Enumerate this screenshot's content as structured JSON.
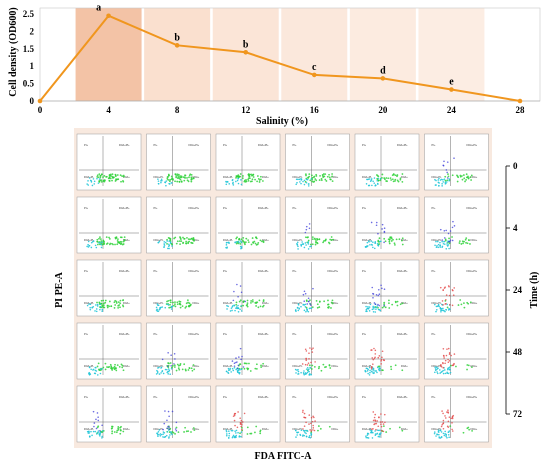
{
  "chart_data": {
    "type": "line",
    "xlabel": "Salinity (%)",
    "ylabel": "Cell density (OD600)",
    "x": [
      0,
      4,
      8,
      12,
      16,
      20,
      24,
      28
    ],
    "y": [
      0,
      2.45,
      1.6,
      1.4,
      0.75,
      0.65,
      0.33,
      0
    ],
    "point_labels": [
      "",
      "a",
      "b",
      "b",
      "c",
      "d",
      "e",
      ""
    ],
    "xlim": [
      0,
      28
    ],
    "ylim": [
      0,
      2.5
    ],
    "y_ticks": [
      "0",
      "0.5",
      "1",
      "1.5",
      "2",
      "2.5"
    ],
    "x_ticks": [
      "0",
      "4",
      "8",
      "12",
      "16",
      "20",
      "24",
      "28"
    ],
    "line_color": "#f0961e"
  },
  "flow_panel": {
    "xlabel": "FDA FITC-A",
    "ylabel": "PI PE-A",
    "time_label": "Time (h)",
    "time_values": [
      "0",
      "4",
      "24",
      "48",
      "72"
    ],
    "quadrant_labels": {
      "ul": "PI+",
      "ur": "FDA+PI+",
      "ll": "FDA+PI-",
      "lr": "FDA+"
    }
  }
}
